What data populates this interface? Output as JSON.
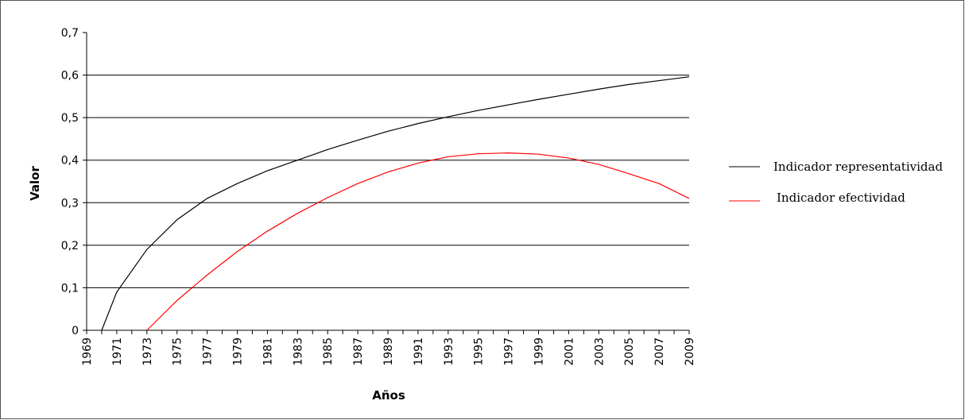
{
  "chart_data": {
    "type": "line",
    "xlabel": "Años",
    "ylabel": "Valor",
    "xlim": [
      1969,
      2009
    ],
    "ylim": [
      0,
      0.7
    ],
    "y_ticks": [
      "0",
      "0,1",
      "0,2",
      "0,3",
      "0,4",
      "0,5",
      "0,6",
      "0,7"
    ],
    "x_ticks": [
      "1969",
      "1971",
      "1973",
      "1975",
      "1977",
      "1979",
      "1981",
      "1983",
      "1985",
      "1987",
      "1989",
      "1991",
      "1993",
      "1995",
      "1997",
      "1999",
      "2001",
      "2003",
      "2005",
      "2007",
      "2009"
    ],
    "grid": "horizontal",
    "legend_position": "right",
    "series": [
      {
        "name": "Indicador representatividad",
        "color": "#000000",
        "x": [
          1970,
          1971,
          1973,
          1975,
          1977,
          1979,
          1981,
          1983,
          1985,
          1987,
          1989,
          1991,
          1993,
          1995,
          1997,
          1999,
          2001,
          2003,
          2005,
          2007,
          2009
        ],
        "y": [
          0.0,
          0.09,
          0.19,
          0.26,
          0.31,
          0.345,
          0.375,
          0.4,
          0.425,
          0.447,
          0.468,
          0.486,
          0.502,
          0.517,
          0.53,
          0.543,
          0.555,
          0.567,
          0.578,
          0.587,
          0.596
        ]
      },
      {
        "name": "Indicador efectividad",
        "color": "#ff0000",
        "x": [
          1973,
          1975,
          1977,
          1979,
          1981,
          1983,
          1985,
          1987,
          1989,
          1991,
          1993,
          1995,
          1997,
          1999,
          2001,
          2003,
          2005,
          2007,
          2009
        ],
        "y": [
          0.0,
          0.07,
          0.13,
          0.185,
          0.233,
          0.275,
          0.312,
          0.345,
          0.372,
          0.393,
          0.408,
          0.415,
          0.417,
          0.414,
          0.405,
          0.39,
          0.368,
          0.345,
          0.31
        ]
      }
    ]
  }
}
